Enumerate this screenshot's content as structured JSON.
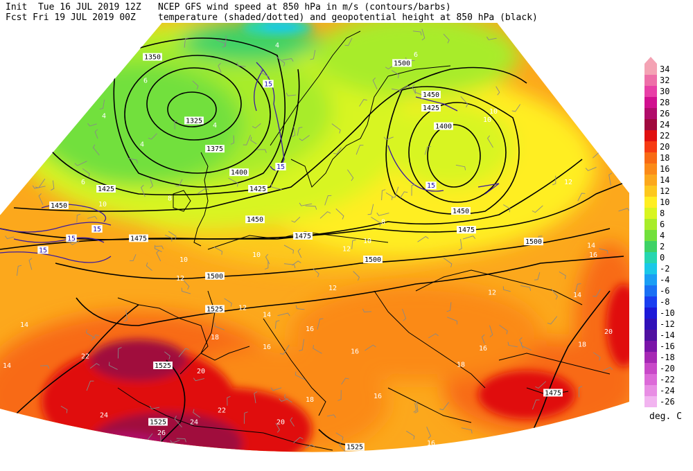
{
  "header": {
    "init": "Init  Tue 16 JUL 2019 12Z",
    "fcst": "Fcst Fri 19 JUL 2019 00Z",
    "title_line1": "NCEP GFS wind speed at 850 hPa in m/s (contours/barbs)",
    "title_line2": "temperature (shaded/dotted) and geopotential height at 850 hPa (black)"
  },
  "colorbar": {
    "unit": "deg. C",
    "levels": [
      {
        "label": "34",
        "color": "#f4a3b4"
      },
      {
        "label": "32",
        "color": "#ee6fa8"
      },
      {
        "label": "30",
        "color": "#e83fa6"
      },
      {
        "label": "28",
        "color": "#d1108f"
      },
      {
        "label": "26",
        "color": "#b00c6a"
      },
      {
        "label": "24",
        "color": "#a0093e"
      },
      {
        "label": "22",
        "color": "#e01010"
      },
      {
        "label": "20",
        "color": "#f63a12"
      },
      {
        "label": "18",
        "color": "#f86a14"
      },
      {
        "label": "16",
        "color": "#fb8a18"
      },
      {
        "label": "14",
        "color": "#fca81c"
      },
      {
        "label": "12",
        "color": "#fdc81e"
      },
      {
        "label": "10",
        "color": "#ffee22"
      },
      {
        "label": "8",
        "color": "#d8f520"
      },
      {
        "label": "6",
        "color": "#a8ec2a"
      },
      {
        "label": "4",
        "color": "#72e03c"
      },
      {
        "label": "2",
        "color": "#3ed266"
      },
      {
        "label": "0",
        "color": "#26d6b0"
      },
      {
        "label": "-2",
        "color": "#1ac8e8"
      },
      {
        "label": "-4",
        "color": "#1a9ef4"
      },
      {
        "label": "-6",
        "color": "#1a70f4"
      },
      {
        "label": "-8",
        "color": "#1a3ef0"
      },
      {
        "label": "-10",
        "color": "#1c18d8"
      },
      {
        "label": "-12",
        "color": "#3010b8"
      },
      {
        "label": "-14",
        "color": "#5010a0"
      },
      {
        "label": "-16",
        "color": "#7a14a8"
      },
      {
        "label": "-18",
        "color": "#a628b4"
      },
      {
        "label": "-20",
        "color": "#c848c8"
      },
      {
        "label": "-22",
        "color": "#dc6ad8"
      },
      {
        "label": "-24",
        "color": "#e88ee4"
      },
      {
        "label": "-26",
        "color": "#f2b4f0"
      }
    ]
  },
  "map": {
    "height_labels": [
      {
        "text": "1350",
        "gx": 0.22,
        "gy": 0.12
      },
      {
        "text": "1325",
        "gx": 0.28,
        "gy": 0.255
      },
      {
        "text": "1375",
        "gx": 0.31,
        "gy": 0.315
      },
      {
        "text": "1400",
        "gx": 0.345,
        "gy": 0.365
      },
      {
        "text": "1425",
        "gx": 0.153,
        "gy": 0.4
      },
      {
        "text": "1425",
        "gx": 0.372,
        "gy": 0.4
      },
      {
        "text": "1450",
        "gx": 0.085,
        "gy": 0.435
      },
      {
        "text": "1450",
        "gx": 0.368,
        "gy": 0.465
      },
      {
        "text": "1475",
        "gx": 0.2,
        "gy": 0.505
      },
      {
        "text": "1475",
        "gx": 0.437,
        "gy": 0.5
      },
      {
        "text": "1500",
        "gx": 0.31,
        "gy": 0.585
      },
      {
        "text": "1500",
        "gx": 0.538,
        "gy": 0.55
      },
      {
        "text": "1525",
        "gx": 0.31,
        "gy": 0.655
      },
      {
        "text": "1525",
        "gx": 0.235,
        "gy": 0.775
      },
      {
        "text": "1525",
        "gx": 0.228,
        "gy": 0.895
      },
      {
        "text": "1525",
        "gx": 0.512,
        "gy": 0.948
      },
      {
        "text": "1500",
        "gx": 0.58,
        "gy": 0.133
      },
      {
        "text": "1450",
        "gx": 0.622,
        "gy": 0.2
      },
      {
        "text": "1425",
        "gx": 0.622,
        "gy": 0.228
      },
      {
        "text": "1400",
        "gx": 0.64,
        "gy": 0.267
      },
      {
        "text": "1450",
        "gx": 0.665,
        "gy": 0.447
      },
      {
        "text": "1475",
        "gx": 0.673,
        "gy": 0.487
      },
      {
        "text": "1500",
        "gx": 0.77,
        "gy": 0.512
      },
      {
        "text": "1475",
        "gx": 0.798,
        "gy": 0.833
      }
    ],
    "temp_labels": [
      {
        "text": "4",
        "gx": 0.4,
        "gy": 0.095
      },
      {
        "text": "6",
        "gx": 0.6,
        "gy": 0.115
      },
      {
        "text": "6",
        "gx": 0.21,
        "gy": 0.17
      },
      {
        "text": "4",
        "gx": 0.15,
        "gy": 0.245
      },
      {
        "text": "4",
        "gx": 0.205,
        "gy": 0.305
      },
      {
        "text": "4",
        "gx": 0.31,
        "gy": 0.265
      },
      {
        "text": "6",
        "gx": 0.12,
        "gy": 0.385
      },
      {
        "text": "10",
        "gx": 0.148,
        "gy": 0.432
      },
      {
        "text": "8",
        "gx": 0.245,
        "gy": 0.42
      },
      {
        "text": "10",
        "gx": 0.712,
        "gy": 0.235
      },
      {
        "text": "10",
        "gx": 0.703,
        "gy": 0.253
      },
      {
        "text": "12",
        "gx": 0.82,
        "gy": 0.385
      },
      {
        "text": "8",
        "gx": 0.553,
        "gy": 0.47
      },
      {
        "text": "10",
        "gx": 0.53,
        "gy": 0.51
      },
      {
        "text": "12",
        "gx": 0.5,
        "gy": 0.527
      },
      {
        "text": "10",
        "gx": 0.265,
        "gy": 0.55
      },
      {
        "text": "10",
        "gx": 0.37,
        "gy": 0.54
      },
      {
        "text": "12",
        "gx": 0.26,
        "gy": 0.59
      },
      {
        "text": "14",
        "gx": 0.853,
        "gy": 0.52
      },
      {
        "text": "16",
        "gx": 0.856,
        "gy": 0.54
      },
      {
        "text": "12",
        "gx": 0.48,
        "gy": 0.61
      },
      {
        "text": "12",
        "gx": 0.71,
        "gy": 0.62
      },
      {
        "text": "14",
        "gx": 0.833,
        "gy": 0.625
      },
      {
        "text": "14",
        "gx": 0.035,
        "gy": 0.688
      },
      {
        "text": "12",
        "gx": 0.35,
        "gy": 0.652
      },
      {
        "text": "14",
        "gx": 0.385,
        "gy": 0.667
      },
      {
        "text": "16",
        "gx": 0.447,
        "gy": 0.697
      },
      {
        "text": "18",
        "gx": 0.31,
        "gy": 0.715
      },
      {
        "text": "16",
        "gx": 0.385,
        "gy": 0.735
      },
      {
        "text": "20",
        "gx": 0.878,
        "gy": 0.703
      },
      {
        "text": "18",
        "gx": 0.84,
        "gy": 0.73
      },
      {
        "text": "22",
        "gx": 0.123,
        "gy": 0.755
      },
      {
        "text": "16",
        "gx": 0.512,
        "gy": 0.745
      },
      {
        "text": "16",
        "gx": 0.697,
        "gy": 0.738
      },
      {
        "text": "18",
        "gx": 0.665,
        "gy": 0.773
      },
      {
        "text": "14",
        "gx": 0.01,
        "gy": 0.775
      },
      {
        "text": "20",
        "gx": 0.29,
        "gy": 0.787
      },
      {
        "text": "18",
        "gx": 0.447,
        "gy": 0.847
      },
      {
        "text": "16",
        "gx": 0.545,
        "gy": 0.84
      },
      {
        "text": "22",
        "gx": 0.32,
        "gy": 0.87
      },
      {
        "text": "24",
        "gx": 0.15,
        "gy": 0.88
      },
      {
        "text": "24",
        "gx": 0.28,
        "gy": 0.895
      },
      {
        "text": "20",
        "gx": 0.405,
        "gy": 0.895
      },
      {
        "text": "26",
        "gx": 0.233,
        "gy": 0.918
      },
      {
        "text": "16",
        "gx": 0.622,
        "gy": 0.94
      }
    ],
    "wind_labels": [
      {
        "text": "15",
        "gx": 0.387,
        "gy": 0.177
      },
      {
        "text": "15",
        "gx": 0.405,
        "gy": 0.353
      },
      {
        "text": "15",
        "gx": 0.14,
        "gy": 0.485
      },
      {
        "text": "15",
        "gx": 0.103,
        "gy": 0.505
      },
      {
        "text": "15",
        "gx": 0.062,
        "gy": 0.53
      },
      {
        "text": "15",
        "gx": 0.622,
        "gy": 0.393
      }
    ]
  }
}
